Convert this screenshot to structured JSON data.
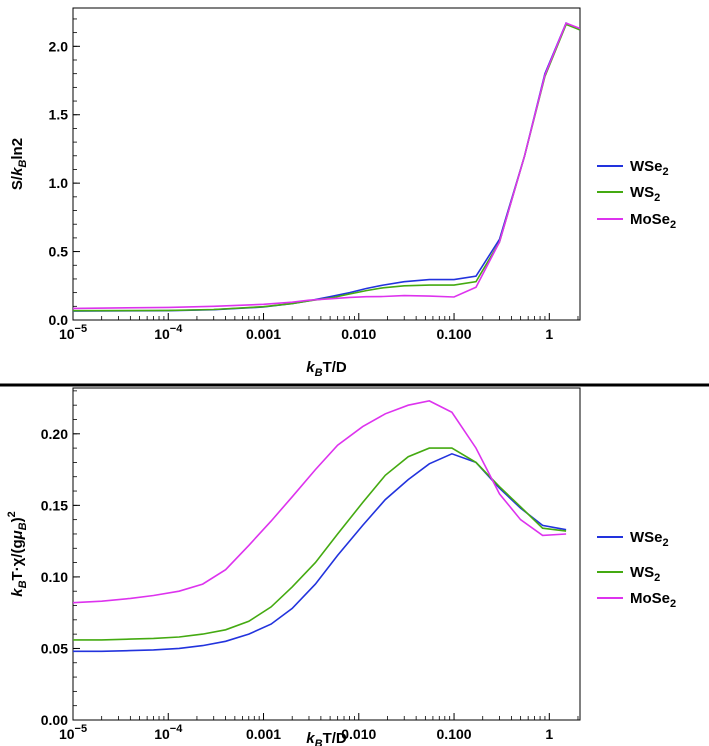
{
  "colors": {
    "WSe2": "#2233dd",
    "WS2": "#44aa11",
    "MoSe2": "#dd33ee"
  },
  "chart_data": [
    {
      "type": "line",
      "xscale": "log",
      "xlim": [
        1e-05,
        2.1
      ],
      "ylim": [
        0,
        2.28
      ],
      "xticks": [
        {
          "value": 1e-05,
          "base": "10",
          "exp": "−5"
        },
        {
          "value": 0.0001,
          "base": "10",
          "exp": "−4"
        },
        {
          "value": 0.001,
          "label": "0.001"
        },
        {
          "value": 0.01,
          "label": "0.010"
        },
        {
          "value": 0.1,
          "label": "0.100"
        },
        {
          "value": 1,
          "label": "1"
        }
      ],
      "yticks": [
        {
          "value": 0,
          "label": "0.0"
        },
        {
          "value": 0.5,
          "label": "0.5"
        },
        {
          "value": 1,
          "label": "1.0"
        },
        {
          "value": 1.5,
          "label": "1.5"
        },
        {
          "value": 2,
          "label": "2.0"
        }
      ],
      "xlabel": {
        "k": "k",
        "sub": "B",
        "rest": "T/D"
      },
      "ylabel": {
        "pre": "S/",
        "k": "k",
        "sub": "B",
        "rest": "ln2"
      },
      "legend_position": "right",
      "x": [
        1e-05,
        0.0001,
        0.0003,
        0.001,
        0.002,
        0.003,
        0.005,
        0.008,
        0.012,
        0.018,
        0.03,
        0.055,
        0.1,
        0.17,
        0.3,
        0.55,
        0.9,
        1.5,
        2.1
      ],
      "series": [
        {
          "key": "WSe2",
          "name": "WSe",
          "sub": "2",
          "values": [
            0.065,
            0.068,
            0.075,
            0.095,
            0.12,
            0.14,
            0.17,
            0.2,
            0.23,
            0.255,
            0.28,
            0.295,
            0.295,
            0.32,
            0.59,
            1.2,
            1.8,
            2.17,
            2.12
          ]
        },
        {
          "key": "WS2",
          "name": "WS",
          "sub": "2",
          "values": [
            0.068,
            0.07,
            0.077,
            0.097,
            0.12,
            0.14,
            0.16,
            0.19,
            0.215,
            0.235,
            0.25,
            0.255,
            0.255,
            0.28,
            0.57,
            1.2,
            1.78,
            2.16,
            2.12
          ]
        },
        {
          "key": "MoSe2",
          "name": "MoSe",
          "sub": "2",
          "values": [
            0.085,
            0.092,
            0.1,
            0.115,
            0.13,
            0.145,
            0.155,
            0.165,
            0.17,
            0.172,
            0.178,
            0.175,
            0.168,
            0.24,
            0.57,
            1.2,
            1.79,
            2.17,
            2.13
          ]
        }
      ]
    },
    {
      "type": "line",
      "xscale": "log",
      "xlim": [
        1e-05,
        2.1
      ],
      "ylim": [
        0,
        0.232
      ],
      "xticks": [
        {
          "value": 1e-05,
          "base": "10",
          "exp": "−5"
        },
        {
          "value": 0.0001,
          "base": "10",
          "exp": "−4"
        },
        {
          "value": 0.001,
          "label": "0.001"
        },
        {
          "value": 0.01,
          "label": "0.010"
        },
        {
          "value": 0.1,
          "label": "0.100"
        },
        {
          "value": 1,
          "label": "1"
        }
      ],
      "yticks": [
        {
          "value": 0,
          "label": "0.00"
        },
        {
          "value": 0.05,
          "label": "0.05"
        },
        {
          "value": 0.1,
          "label": "0.10"
        },
        {
          "value": 0.15,
          "label": "0.15"
        },
        {
          "value": 0.2,
          "label": "0.20"
        }
      ],
      "xlabel": {
        "k": "k",
        "sub": "B",
        "rest": "T/D"
      },
      "ylabel": {
        "k": "k",
        "sub": "B",
        "mid": "T·χ/(g",
        "mu": "μ",
        "musub": "B",
        "close": ")",
        "sup": "2"
      },
      "legend_position": "right",
      "x": [
        1e-05,
        2e-05,
        4e-05,
        7e-05,
        0.00013,
        0.00023,
        0.0004,
        0.0007,
        0.0012,
        0.002,
        0.0035,
        0.006,
        0.011,
        0.019,
        0.033,
        0.055,
        0.095,
        0.17,
        0.3,
        0.5,
        0.85,
        1.5
      ],
      "series": [
        {
          "key": "WSe2",
          "name": "WSe",
          "sub": "2",
          "values": [
            0.048,
            0.048,
            0.0485,
            0.049,
            0.05,
            0.052,
            0.055,
            0.06,
            0.067,
            0.078,
            0.095,
            0.115,
            0.136,
            0.154,
            0.168,
            0.179,
            0.186,
            0.18,
            0.162,
            0.148,
            0.136,
            0.133
          ]
        },
        {
          "key": "WS2",
          "name": "WS",
          "sub": "2",
          "values": [
            0.056,
            0.056,
            0.0565,
            0.057,
            0.058,
            0.06,
            0.063,
            0.069,
            0.079,
            0.093,
            0.11,
            0.13,
            0.152,
            0.171,
            0.184,
            0.19,
            0.19,
            0.18,
            0.163,
            0.149,
            0.134,
            0.132
          ]
        },
        {
          "key": "MoSe2",
          "name": "MoSe",
          "sub": "2",
          "values": [
            0.082,
            0.083,
            0.085,
            0.087,
            0.09,
            0.095,
            0.105,
            0.122,
            0.139,
            0.156,
            0.175,
            0.192,
            0.205,
            0.214,
            0.22,
            0.223,
            0.215,
            0.19,
            0.158,
            0.14,
            0.129,
            0.13
          ]
        }
      ]
    }
  ]
}
